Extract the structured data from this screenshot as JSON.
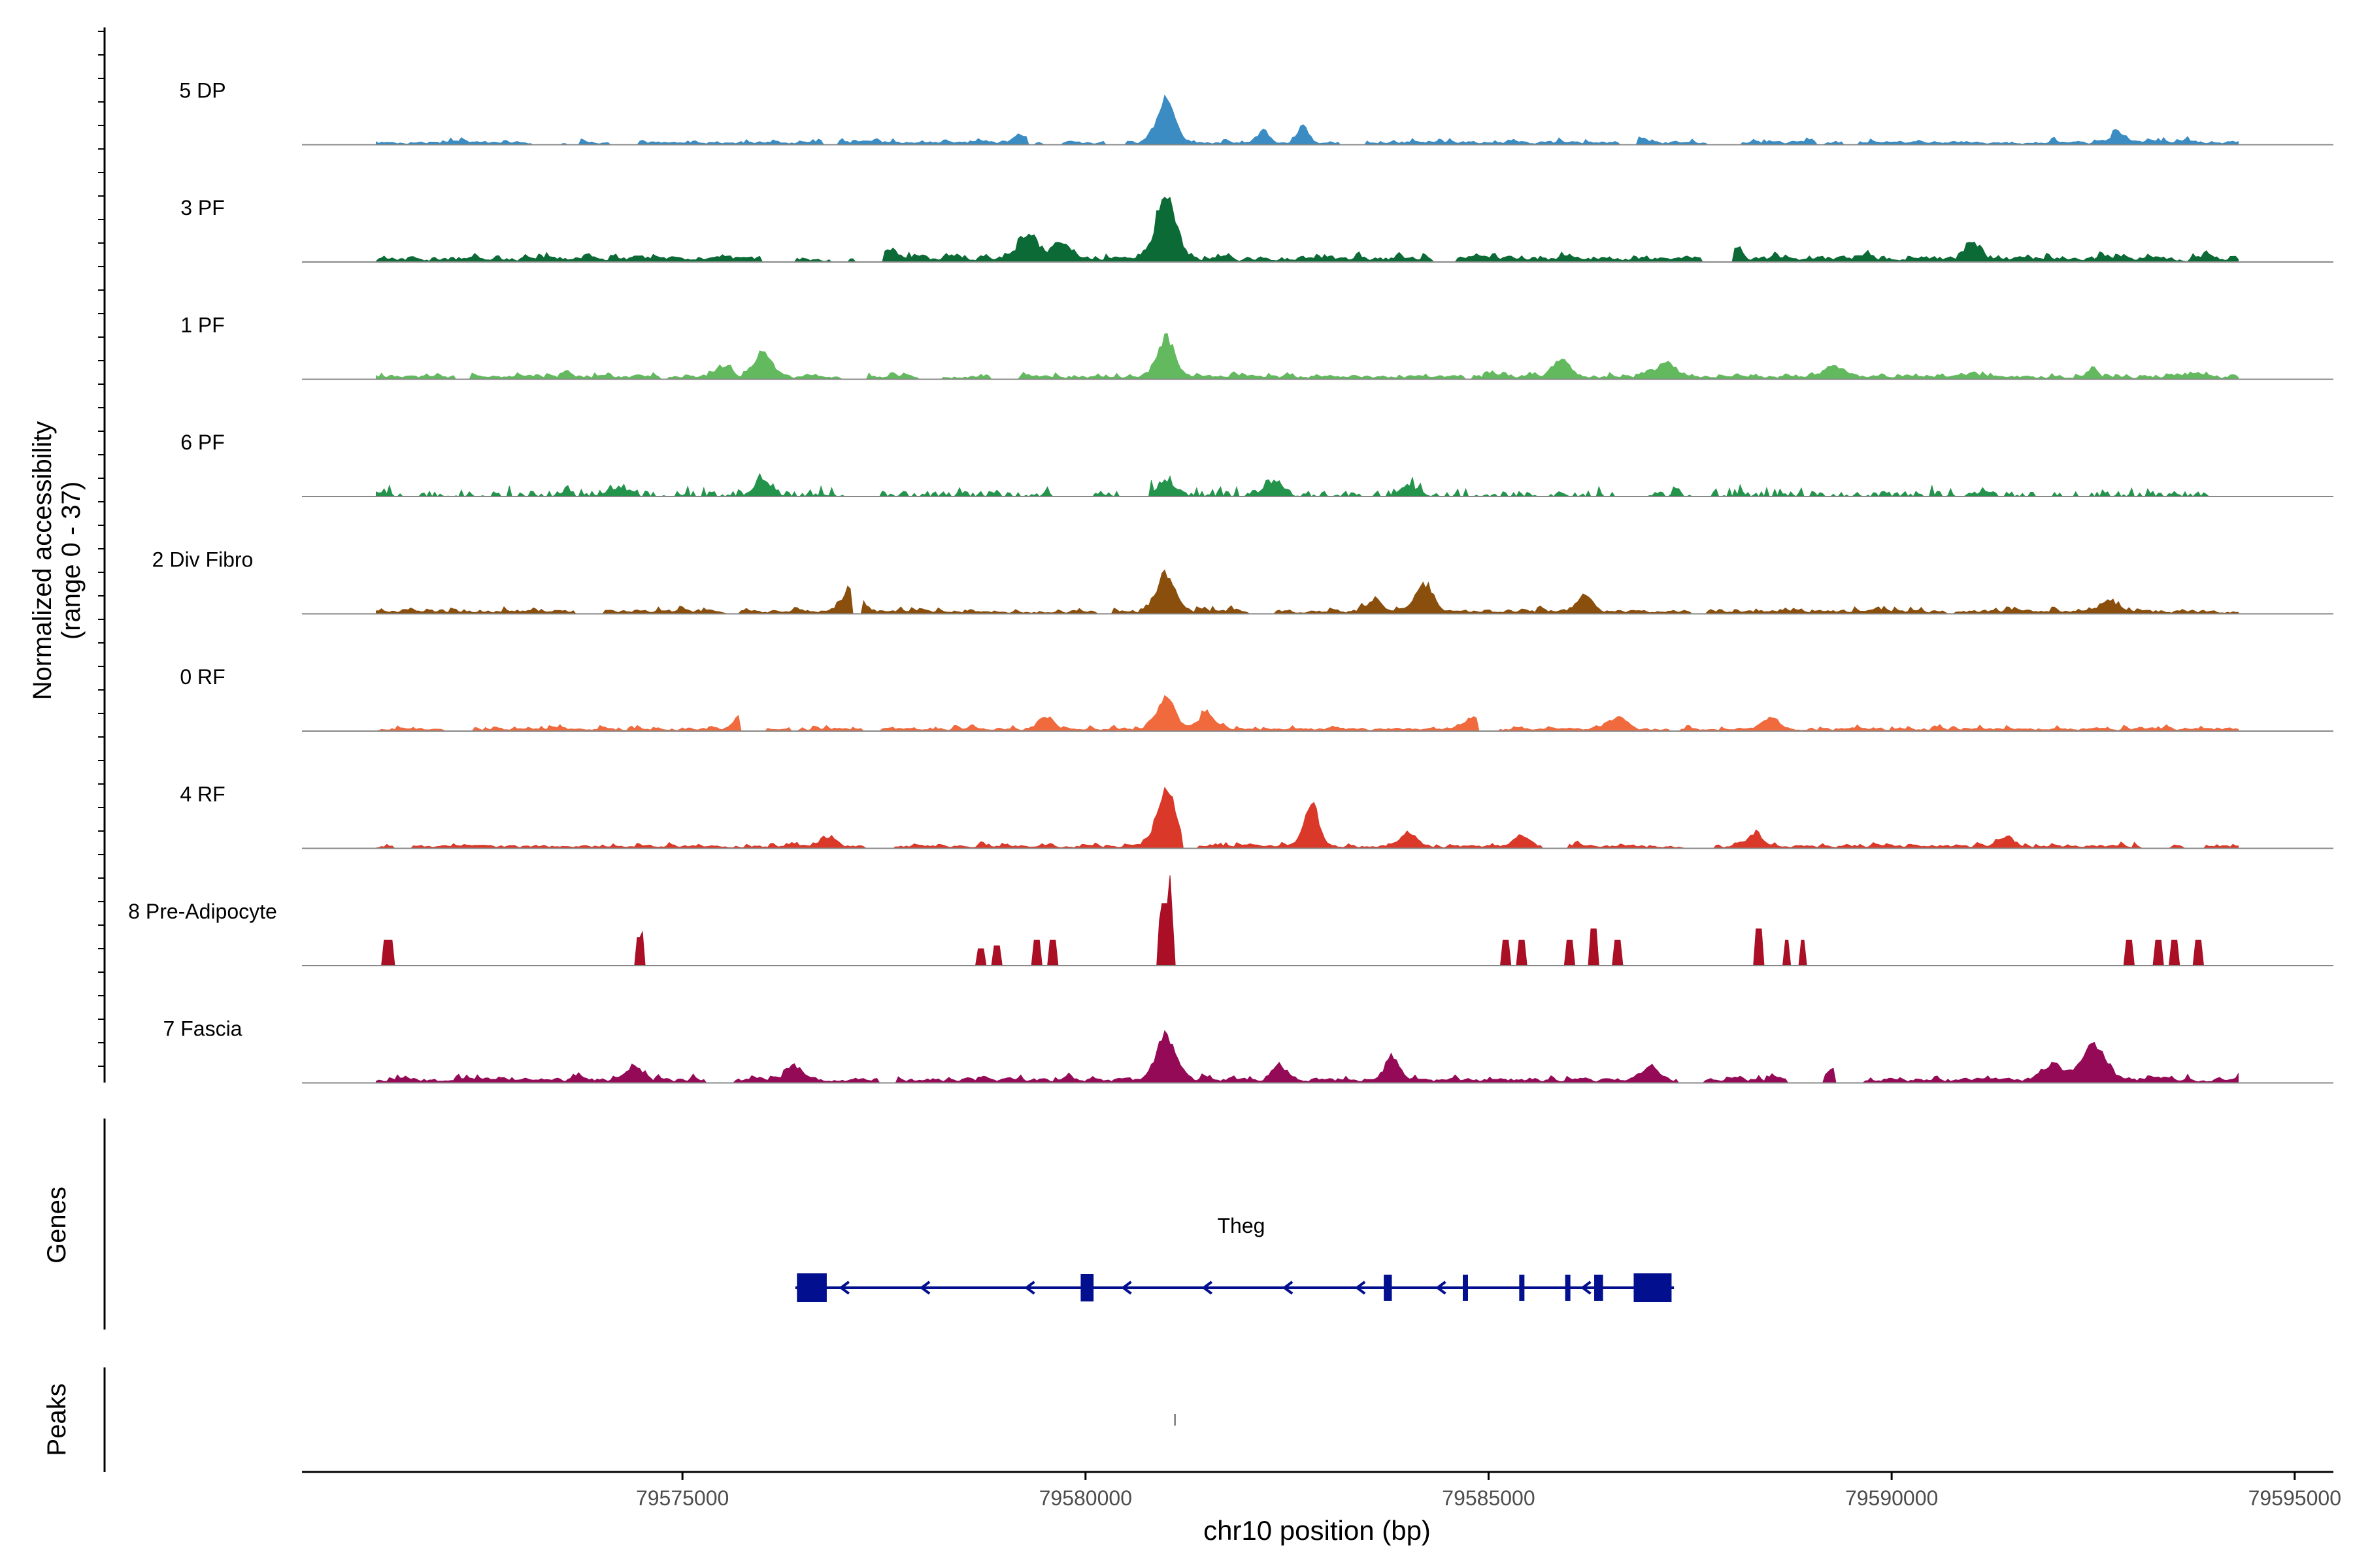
{
  "chart_data": {
    "type": "area",
    "title": "",
    "ylabel": "Normalized accessibility",
    "ylabel_range": "(range 0 - 37)",
    "ylim": [
      0,
      37
    ],
    "xlabel": "chr10 position (bp)",
    "xlim": [
      79570280,
      79595480
    ],
    "x_ticks": [
      79575000,
      79580000,
      79585000,
      79590000,
      79595000
    ],
    "x_tick_labels": [
      "79575000",
      "79580000",
      "79585000",
      "79590000",
      "79595000"
    ],
    "data_extent": [
      79571200,
      79594300
    ],
    "genes_label": "Genes",
    "peaks_label": "Peaks",
    "tracks": [
      {
        "name": "5 DP",
        "color": "#3A8CC3",
        "style": "smooth",
        "baseline": 0.9,
        "noise": 2.5,
        "gaps": 12,
        "seed": 11,
        "peaks": [
          [
            79581000,
            15,
            110
          ],
          [
            79582200,
            4,
            70
          ],
          [
            79582700,
            6,
            60
          ],
          [
            79579200,
            3,
            80
          ],
          [
            79586800,
            3,
            90
          ],
          [
            79592800,
            4,
            80
          ]
        ]
      },
      {
        "name": "3 PF",
        "color": "#0B6A35",
        "style": "smooth",
        "baseline": 1.5,
        "noise": 3.0,
        "gaps": 5,
        "seed": 23,
        "peaks": [
          [
            79581000,
            22,
            120
          ],
          [
            79579300,
            9,
            120
          ],
          [
            79579700,
            6,
            100
          ],
          [
            79577600,
            3,
            80
          ],
          [
            79588000,
            4,
            100
          ],
          [
            79591000,
            5,
            90
          ]
        ]
      },
      {
        "name": "1 PF",
        "color": "#62B95E",
        "style": "smooth",
        "baseline": 1.0,
        "noise": 2.5,
        "gaps": 6,
        "seed": 37,
        "peaks": [
          [
            79581000,
            13,
            110
          ],
          [
            79576000,
            9,
            110
          ],
          [
            79575500,
            3,
            100
          ],
          [
            79585900,
            6,
            110
          ],
          [
            79587200,
            5,
            100
          ],
          [
            79589300,
            4,
            120
          ],
          [
            79592500,
            3,
            60
          ]
        ]
      },
      {
        "name": "6 PF",
        "color": "#24944D",
        "style": "blocky",
        "baseline": 1.2,
        "noise": 3.0,
        "gaps": 10,
        "seed": 41,
        "peaks": [
          [
            79576000,
            5,
            110
          ],
          [
            79574200,
            3,
            120
          ],
          [
            79582300,
            5,
            100
          ],
          [
            79581000,
            5,
            110
          ],
          [
            79584000,
            4,
            100
          ]
        ]
      },
      {
        "name": "2 Div Fibro",
        "color": "#8A4E0D",
        "style": "smooth",
        "baseline": 1.0,
        "noise": 3.0,
        "gaps": 8,
        "seed": 53,
        "peaks": [
          [
            79577100,
            8,
            110
          ],
          [
            79581000,
            13,
            110
          ],
          [
            79584200,
            9,
            110
          ],
          [
            79583600,
            4,
            90
          ],
          [
            79586200,
            5,
            100
          ],
          [
            79592700,
            4,
            90
          ]
        ]
      },
      {
        "name": "0 RF",
        "color": "#F06A3E",
        "style": "smooth",
        "baseline": 0.8,
        "noise": 2.2,
        "gaps": 6,
        "seed": 67,
        "peaks": [
          [
            79581000,
            10,
            110
          ],
          [
            79581500,
            6,
            100
          ],
          [
            79575700,
            4,
            80
          ],
          [
            79579500,
            4,
            100
          ],
          [
            79584800,
            4,
            100
          ],
          [
            79586600,
            4,
            100
          ],
          [
            79588500,
            4,
            100
          ]
        ]
      },
      {
        "name": "4 RF",
        "color": "#DA3829",
        "style": "smooth",
        "baseline": 0.8,
        "noise": 2.5,
        "gaps": 7,
        "seed": 71,
        "peaks": [
          [
            79581000,
            19,
            120
          ],
          [
            79582800,
            15,
            90
          ],
          [
            79576800,
            3,
            90
          ],
          [
            79584000,
            4,
            100
          ],
          [
            79585400,
            4,
            100
          ],
          [
            79588300,
            4,
            100
          ],
          [
            79591400,
            3,
            100
          ]
        ]
      },
      {
        "name": "8 Pre-Adipocyte",
        "color": "#AA0F25",
        "style": "spikes",
        "spikes": [
          [
            79571350,
            9,
            110
          ],
          [
            79574450,
            10,
            60
          ],
          [
            79574500,
            12,
            40
          ],
          [
            79578700,
            6,
            90
          ],
          [
            79578900,
            7,
            90
          ],
          [
            79579400,
            9,
            90
          ],
          [
            79579600,
            9,
            90
          ],
          [
            79581000,
            22,
            110
          ],
          [
            79581050,
            32,
            40
          ],
          [
            79581000,
            16,
            200
          ],
          [
            79585200,
            9,
            100
          ],
          [
            79585400,
            9,
            100
          ],
          [
            79586000,
            9,
            90
          ],
          [
            79586300,
            13,
            100
          ],
          [
            79586600,
            9,
            90
          ],
          [
            79588350,
            13,
            110
          ],
          [
            79588700,
            9,
            90
          ],
          [
            79588900,
            9,
            90
          ],
          [
            79592950,
            9,
            90
          ],
          [
            79593300,
            9,
            90
          ],
          [
            79593500,
            9,
            90
          ],
          [
            79593800,
            9,
            90
          ]
        ]
      },
      {
        "name": "7 Fascia",
        "color": "#940A57",
        "style": "smooth",
        "baseline": 1.3,
        "noise": 3.0,
        "gaps": 6,
        "seed": 89,
        "peaks": [
          [
            79581000,
            16,
            120
          ],
          [
            79592500,
            12,
            150
          ],
          [
            79592000,
            5,
            130
          ],
          [
            79583800,
            7,
            100
          ],
          [
            79582400,
            5,
            90
          ],
          [
            79576400,
            5,
            90
          ],
          [
            79574400,
            4,
            100
          ],
          [
            79587000,
            5,
            100
          ],
          [
            79589300,
            4,
            100
          ]
        ]
      }
    ],
    "gene": {
      "name": "Theg",
      "color": "#020F8E",
      "strand": "-",
      "start": 79576400,
      "end": 79587300,
      "exons": [
        [
          79576420,
          79576790
        ],
        [
          79579940,
          79580100
        ],
        [
          79583700,
          79583800
        ],
        [
          79584680,
          79584740
        ],
        [
          79585380,
          79585440
        ],
        [
          79585950,
          79586000
        ],
        [
          79586310,
          79586420
        ],
        [
          79586800,
          79587270
        ]
      ],
      "arrows": [
        79577000,
        79578000,
        79579300,
        79580500,
        79581500,
        79582500,
        79583400,
        79584400,
        79586200
      ]
    },
    "peaks": [
      79581110
    ]
  }
}
